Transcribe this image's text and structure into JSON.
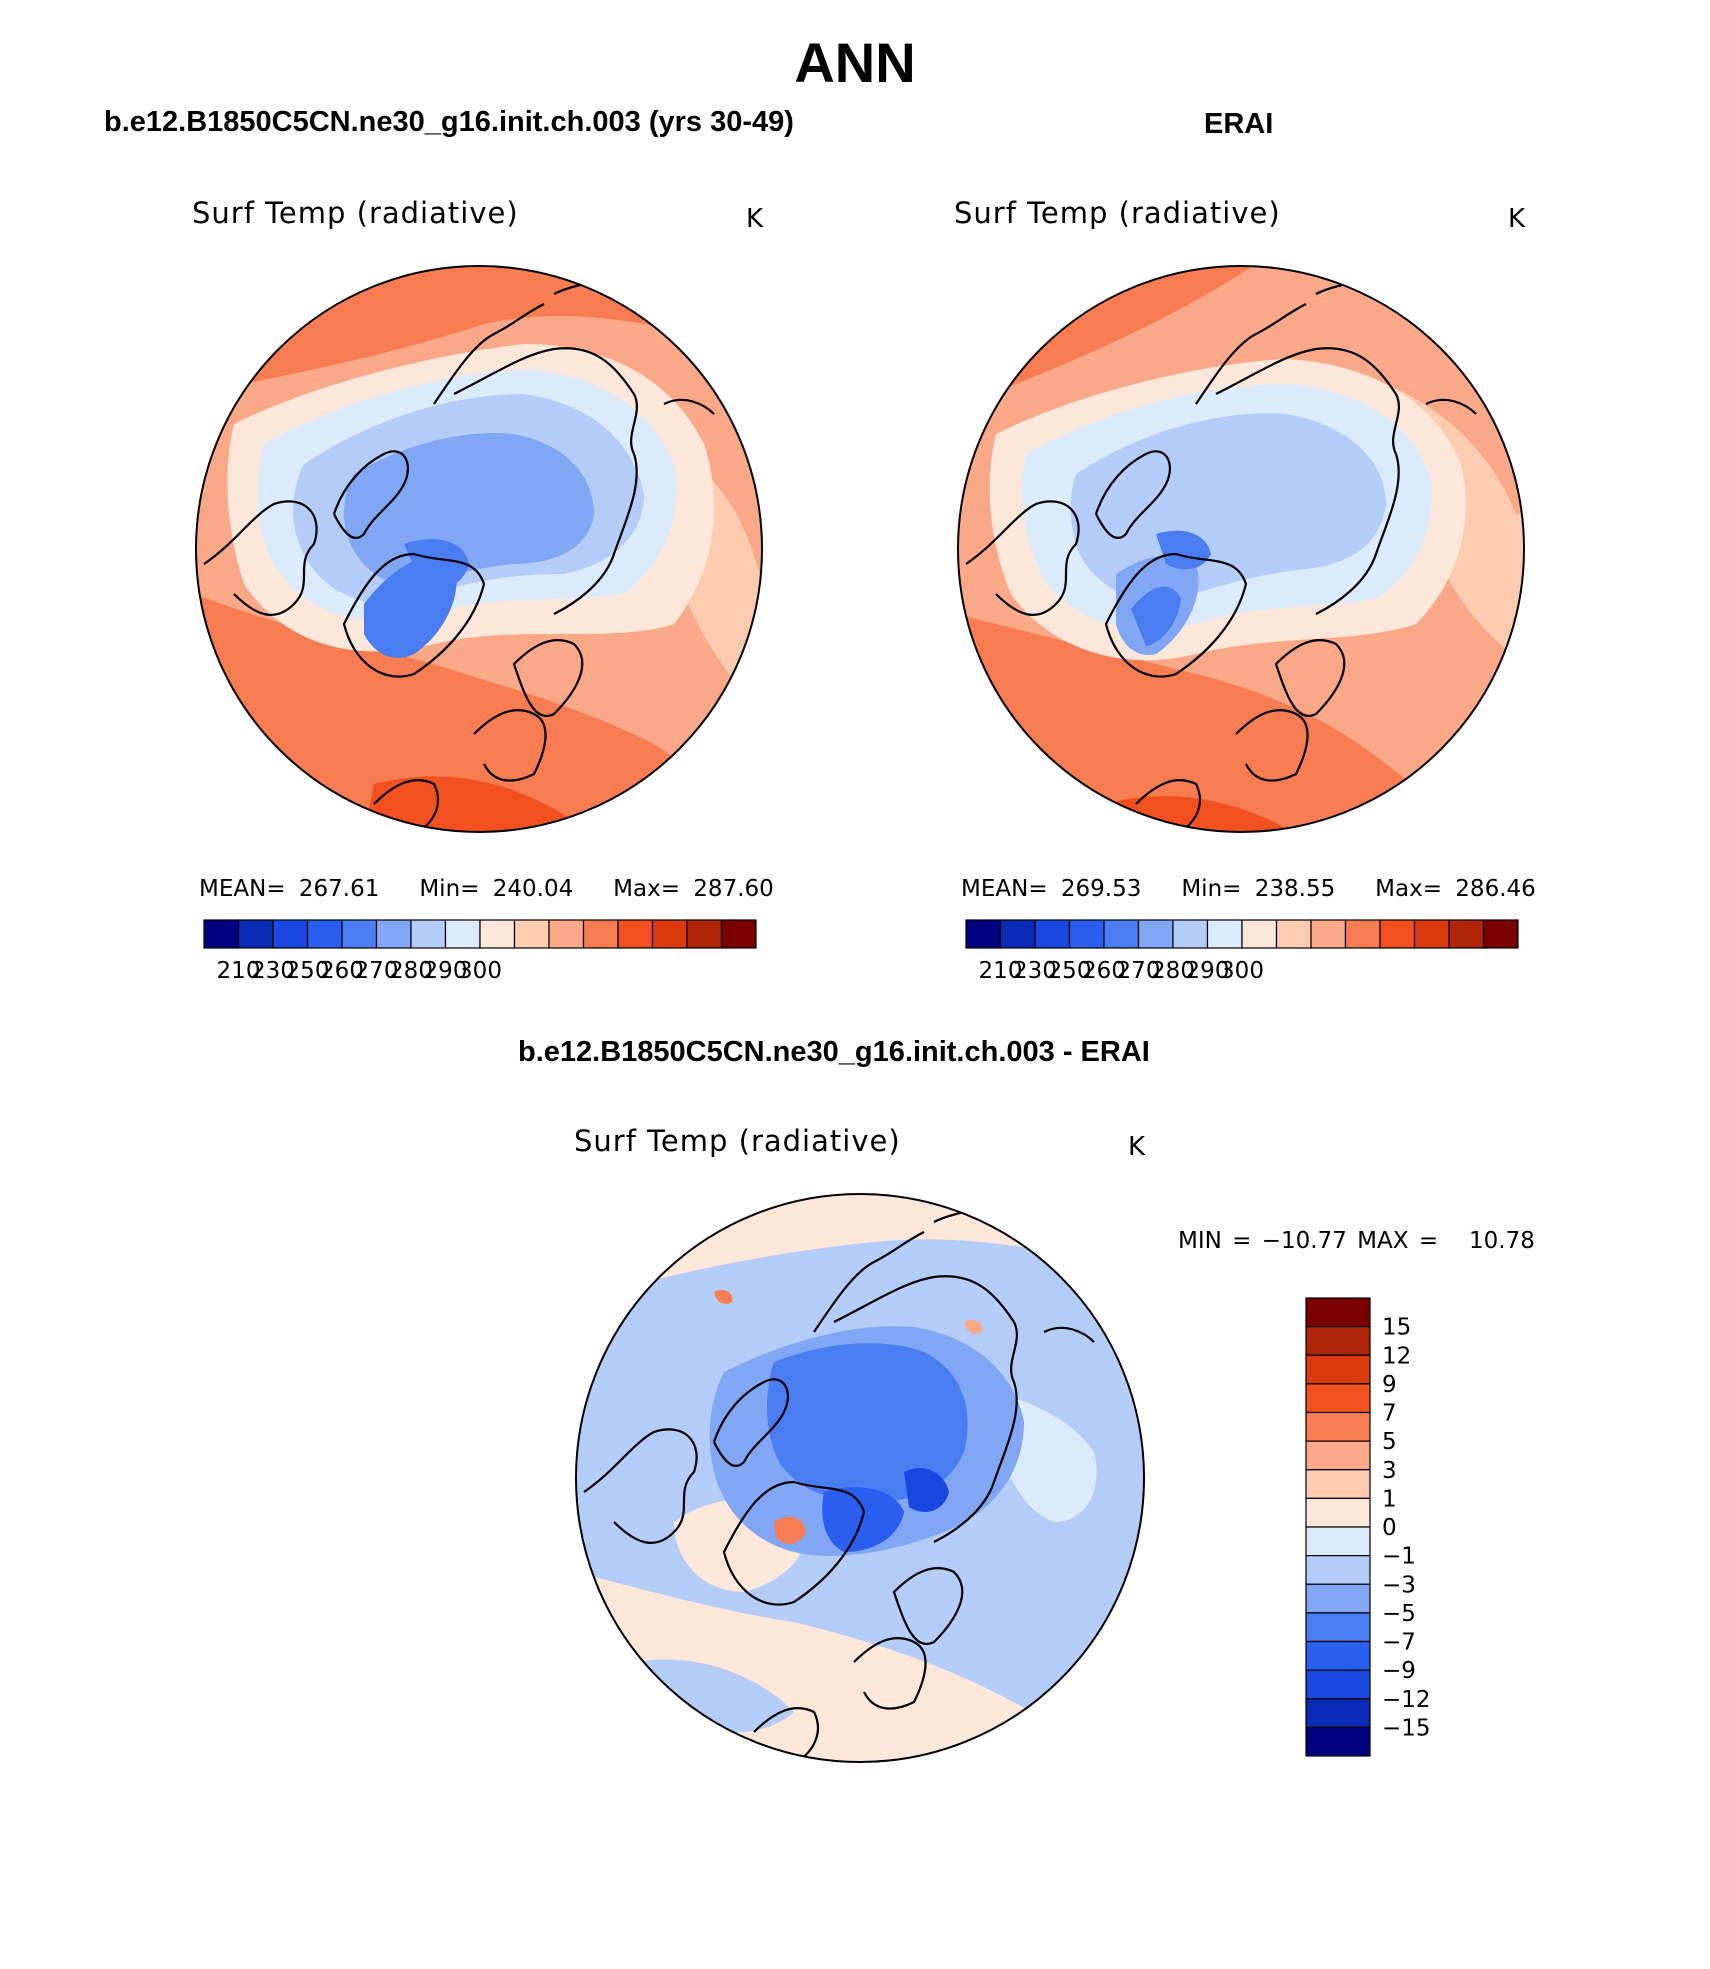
{
  "title": "ANN",
  "panels": {
    "model": {
      "case_title": "b.e12.B1850C5CN.ne30_g16.init.ch.003 (yrs 30-49)",
      "variable": "Surf Temp (radiative)",
      "units": "K",
      "stats": {
        "mean_label": "MEAN=",
        "mean": "267.61",
        "min_label": "Min=",
        "min": "240.04",
        "max_label": "Max=",
        "max": "287.60"
      },
      "colorbar_ticks": [
        "210",
        "230",
        "250",
        "260",
        "270",
        "280",
        "290",
        "300"
      ]
    },
    "obs": {
      "case_title": "ERAI",
      "variable": "Surf Temp (radiative)",
      "units": "K",
      "stats": {
        "mean_label": "MEAN=",
        "mean": "269.53",
        "min_label": "Min=",
        "min": "238.55",
        "max_label": "Max=",
        "max": "286.46"
      },
      "colorbar_ticks": [
        "210",
        "230",
        "250",
        "260",
        "270",
        "280",
        "290",
        "300"
      ]
    },
    "diff": {
      "case_title": "b.e12.B1850C5CN.ne30_g16.init.ch.003 - ERAI",
      "variable": "Surf Temp (radiative)",
      "units": "K",
      "stats": {
        "min_label": "MIN =",
        "min": "−10.77",
        "max_label": "MAX =",
        "max": "10.78"
      },
      "colorbar_ticks": [
        "15",
        "12",
        "9",
        "7",
        "5",
        "3",
        "1",
        "0",
        "−1",
        "−3",
        "−5",
        "−7",
        "−9",
        "−12",
        "−15"
      ]
    }
  },
  "colors": {
    "abs_scale": [
      "#000080",
      "#0a2ab8",
      "#1848e0",
      "#2a5ef0",
      "#4a7cf2",
      "#80a6f4",
      "#b4ccf8",
      "#dcebfb",
      "#fde7da",
      "#fccbb0",
      "#faa888",
      "#f87c52",
      "#f2501f",
      "#da3a0e",
      "#b02408",
      "#7a0000"
    ],
    "diff_scale": [
      "#000080",
      "#0a2ab8",
      "#1848e0",
      "#2a5ef0",
      "#4a7cf2",
      "#80a6f4",
      "#b4ccf8",
      "#dcebfb",
      "#fde7da",
      "#fccbb0",
      "#faa888",
      "#f87c52",
      "#f2501f",
      "#da3a0e",
      "#b02408",
      "#7a0000"
    ]
  }
}
